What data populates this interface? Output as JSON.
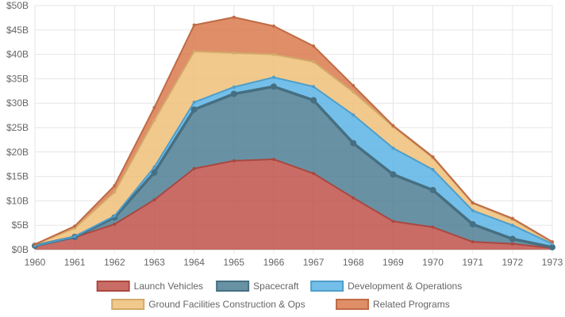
{
  "chart_data": {
    "type": "area",
    "stacked": true,
    "x": [
      "1960",
      "1961",
      "1962",
      "1963",
      "1964",
      "1965",
      "1966",
      "1967",
      "1968",
      "1969",
      "1970",
      "1971",
      "1972",
      "1973"
    ],
    "y_ticks": [
      "$0B",
      "$5B",
      "$10B",
      "$15B",
      "$20B",
      "$25B",
      "$30B",
      "$35B",
      "$40B",
      "$45B",
      "$50B"
    ],
    "ylim": [
      0,
      50
    ],
    "grid": true,
    "legend_position": "bottom",
    "series": [
      {
        "name": "Launch Vehicles",
        "color": "#c0524a",
        "values": [
          0.7,
          2.5,
          5.2,
          10.2,
          16.6,
          18.2,
          18.5,
          15.6,
          10.6,
          5.8,
          4.6,
          1.6,
          1.2,
          0.3
        ]
      },
      {
        "name": "Spacecraft",
        "color": "#4f7e94",
        "values": [
          0.1,
          0.1,
          1.4,
          5.6,
          12.1,
          13.7,
          14.9,
          15.0,
          11.2,
          9.6,
          7.6,
          3.6,
          1.0,
          0.2
        ]
      },
      {
        "name": "Development & Operations",
        "color": "#5ab4e5",
        "values": [
          0.0,
          0.1,
          0.3,
          1.1,
          1.5,
          1.4,
          1.9,
          2.8,
          5.8,
          5.4,
          4.2,
          2.8,
          2.8,
          0.7
        ]
      },
      {
        "name": "Ground Facilities Construction & Ops",
        "color": "#f0c078",
        "values": [
          0.3,
          1.7,
          4.9,
          9.6,
          10.4,
          7.0,
          4.7,
          5.1,
          4.7,
          4.4,
          2.4,
          1.5,
          1.2,
          0.3
        ]
      },
      {
        "name": "Related Programs",
        "color": "#d97a4e",
        "values": [
          0.0,
          0.4,
          1.3,
          2.6,
          5.4,
          7.3,
          5.8,
          3.2,
          1.3,
          0.2,
          0.2,
          0.1,
          0.2,
          0.1
        ]
      }
    ]
  }
}
